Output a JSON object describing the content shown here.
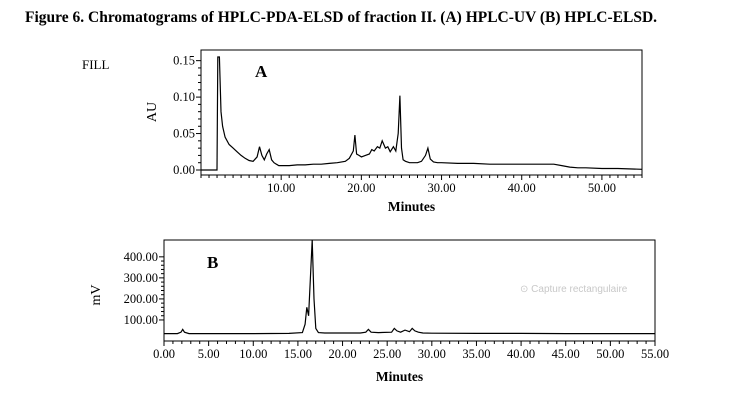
{
  "caption": "Figure 6. Chromatograms of HPLC-PDA-ELSD of fraction II. (A) HPLC-UV (B) HPLC-ELSD.",
  "fill_label": "FILL",
  "watermark": "Capture rectangulaire",
  "chart_data": [
    {
      "type": "line",
      "panel_label": "A",
      "title": "",
      "xlabel": "Minutes",
      "ylabel": "AU",
      "xlim": [
        0,
        55
      ],
      "ylim": [
        0,
        0.155
      ],
      "x_ticks": [
        10,
        20,
        30,
        40,
        50
      ],
      "x_tick_labels": [
        "10.00",
        "20.00",
        "30.00",
        "40.00",
        "50.00"
      ],
      "y_ticks": [
        0,
        0.05,
        0.1,
        0.15
      ],
      "y_tick_labels": [
        "0.00",
        "0.05",
        "0.10",
        "0.15"
      ],
      "grid": false,
      "color": "#000000",
      "series": [
        {
          "x": [
            0,
            2.0,
            2.1,
            2.3,
            2.5,
            2.7,
            3.0,
            3.5,
            4.0,
            4.5,
            5.0,
            5.5,
            6.0,
            6.5,
            7.0,
            7.3,
            7.6,
            7.9,
            8.2,
            8.5,
            8.8,
            9.1,
            9.4,
            9.7,
            10.0,
            11,
            12,
            13,
            14,
            15,
            16,
            17,
            18,
            18.5,
            19.0,
            19.2,
            19.4,
            19.7,
            20.0,
            20.5,
            21.0,
            21.3,
            21.6,
            22.0,
            22.3,
            22.6,
            23.0,
            23.3,
            23.6,
            24.0,
            24.3,
            24.6,
            24.8,
            25.0,
            25.2,
            25.5,
            26.0,
            26.5,
            27.0,
            27.5,
            28.0,
            28.3,
            28.6,
            29.0,
            29.5,
            30,
            32,
            34,
            36,
            38,
            40,
            42,
            44,
            45,
            46,
            47,
            48,
            50,
            52,
            55
          ],
          "y": [
            0,
            0,
            0.16,
            0.16,
            0.08,
            0.06,
            0.045,
            0.035,
            0.03,
            0.025,
            0.02,
            0.016,
            0.013,
            0.012,
            0.018,
            0.032,
            0.02,
            0.014,
            0.022,
            0.028,
            0.014,
            0.01,
            0.008,
            0.006,
            0.006,
            0.006,
            0.007,
            0.007,
            0.008,
            0.008,
            0.009,
            0.01,
            0.012,
            0.016,
            0.026,
            0.048,
            0.022,
            0.02,
            0.018,
            0.02,
            0.022,
            0.028,
            0.026,
            0.032,
            0.03,
            0.04,
            0.03,
            0.032,
            0.025,
            0.032,
            0.026,
            0.05,
            0.102,
            0.03,
            0.014,
            0.012,
            0.01,
            0.01,
            0.01,
            0.012,
            0.02,
            0.03,
            0.015,
            0.011,
            0.01,
            0.01,
            0.009,
            0.009,
            0.008,
            0.008,
            0.008,
            0.008,
            0.008,
            0.006,
            0.004,
            0.003,
            0.003,
            0.002,
            0.002,
            0.001
          ]
        }
      ]
    },
    {
      "type": "line",
      "panel_label": "B",
      "title": "",
      "xlabel": "Minutes",
      "ylabel": "mV",
      "xlim": [
        0,
        55
      ],
      "ylim": [
        0,
        480
      ],
      "x_ticks": [
        0,
        5,
        10,
        15,
        20,
        25,
        30,
        35,
        40,
        45,
        50,
        55
      ],
      "x_tick_labels": [
        "0.00",
        "5.00",
        "10.00",
        "15.00",
        "20.00",
        "25.00",
        "30.00",
        "35.00",
        "40.00",
        "45.00",
        "50.00",
        "55.00"
      ],
      "y_ticks": [
        100,
        200,
        300,
        400
      ],
      "y_tick_labels": [
        "100.00",
        "200.00",
        "300.00",
        "400.00"
      ],
      "grid": false,
      "color": "#000000",
      "series": [
        {
          "x": [
            0,
            1.5,
            1.9,
            2.1,
            2.3,
            2.8,
            5,
            10,
            14,
            15.5,
            15.8,
            16.0,
            16.2,
            16.4,
            16.6,
            16.8,
            17.0,
            17.3,
            18,
            20,
            22,
            22.6,
            22.9,
            23.2,
            24,
            25.5,
            25.8,
            26.1,
            26.5,
            27,
            27.5,
            27.8,
            28.1,
            28.5,
            29,
            30,
            35,
            40,
            45,
            50,
            55
          ],
          "y": [
            35,
            35,
            42,
            55,
            42,
            35,
            35,
            35,
            36,
            40,
            80,
            160,
            120,
            300,
            480,
            200,
            60,
            40,
            38,
            38,
            38,
            42,
            55,
            42,
            40,
            42,
            60,
            48,
            42,
            52,
            44,
            60,
            48,
            42,
            38,
            37,
            36,
            36,
            35,
            35,
            35
          ]
        }
      ]
    }
  ]
}
